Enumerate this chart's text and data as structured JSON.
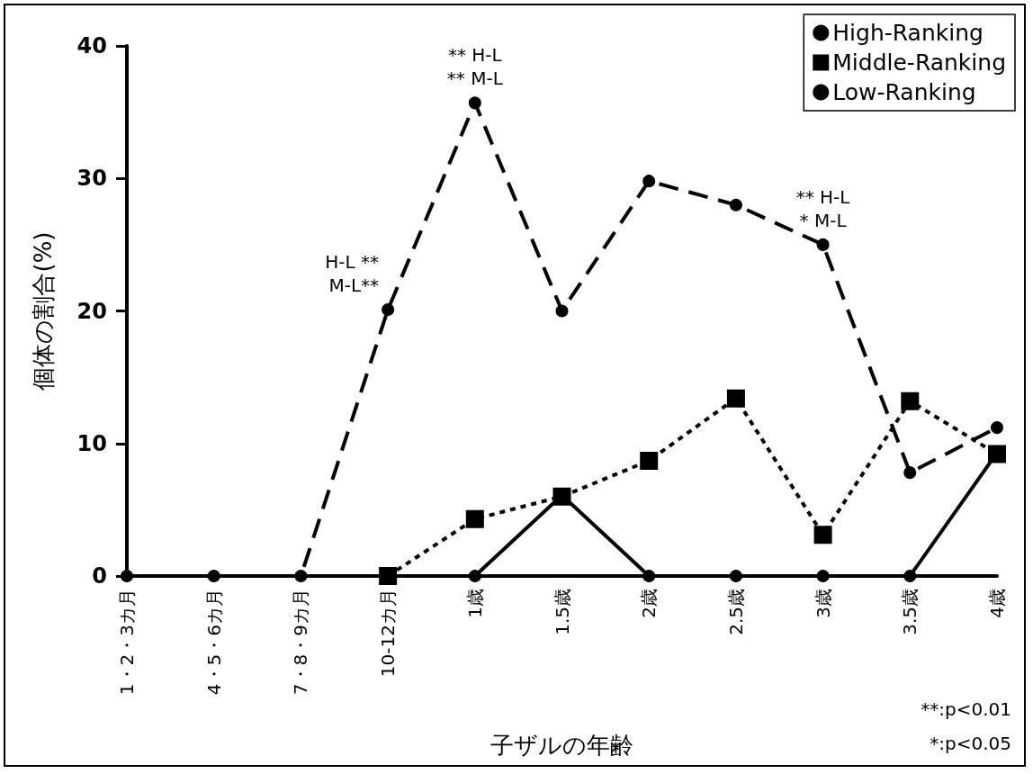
{
  "chart_data": {
    "type": "line",
    "xlabel": "子ザルの年齢",
    "ylabel": "個体の割合(%)",
    "categories": [
      "1・2・3カ月",
      "4・5・6カ月",
      "7・8・9カ月",
      "10-12カ月",
      "1歳",
      "1.5歳",
      "2歳",
      "2.5歳",
      "3歳",
      "3.5歳",
      "4歳"
    ],
    "series": [
      {
        "name": "High-Ranking",
        "color": "#000000",
        "marker": "circle",
        "line_style": "solid",
        "values": [
          null,
          null,
          null,
          null,
          0,
          6.1,
          0,
          0,
          0,
          0,
          9.3
        ]
      },
      {
        "name": "Middle-Ranking",
        "color": "#000000",
        "marker": "square",
        "line_style": "dashed",
        "values": [
          null,
          null,
          null,
          0,
          4.3,
          6.0,
          8.7,
          13.4,
          3.1,
          13.2,
          9.2
        ]
      },
      {
        "name": "Low-Ranking",
        "color": "#000000",
        "marker": "circle",
        "line_style": "long-dashed",
        "values": [
          0,
          0,
          0,
          20.1,
          35.7,
          20.0,
          29.8,
          28.0,
          25.0,
          7.8,
          11.2
        ]
      }
    ],
    "ylim": [
      0,
      40
    ],
    "yticks": [
      0,
      10,
      20,
      30,
      40
    ],
    "grid": false,
    "legend": "top right",
    "annotations": [
      {
        "text": "H-L **\nM-L**",
        "x": "10-12カ月",
        "y": 20.1
      },
      {
        "text": "** H-L\n** M-L",
        "x": "1歳",
        "y": 35.7
      },
      {
        "text": "** H-L\n* M-L",
        "x": "3歳",
        "y": 25.0
      },
      "**:p<0.01",
      "*:p<0.05"
    ]
  }
}
